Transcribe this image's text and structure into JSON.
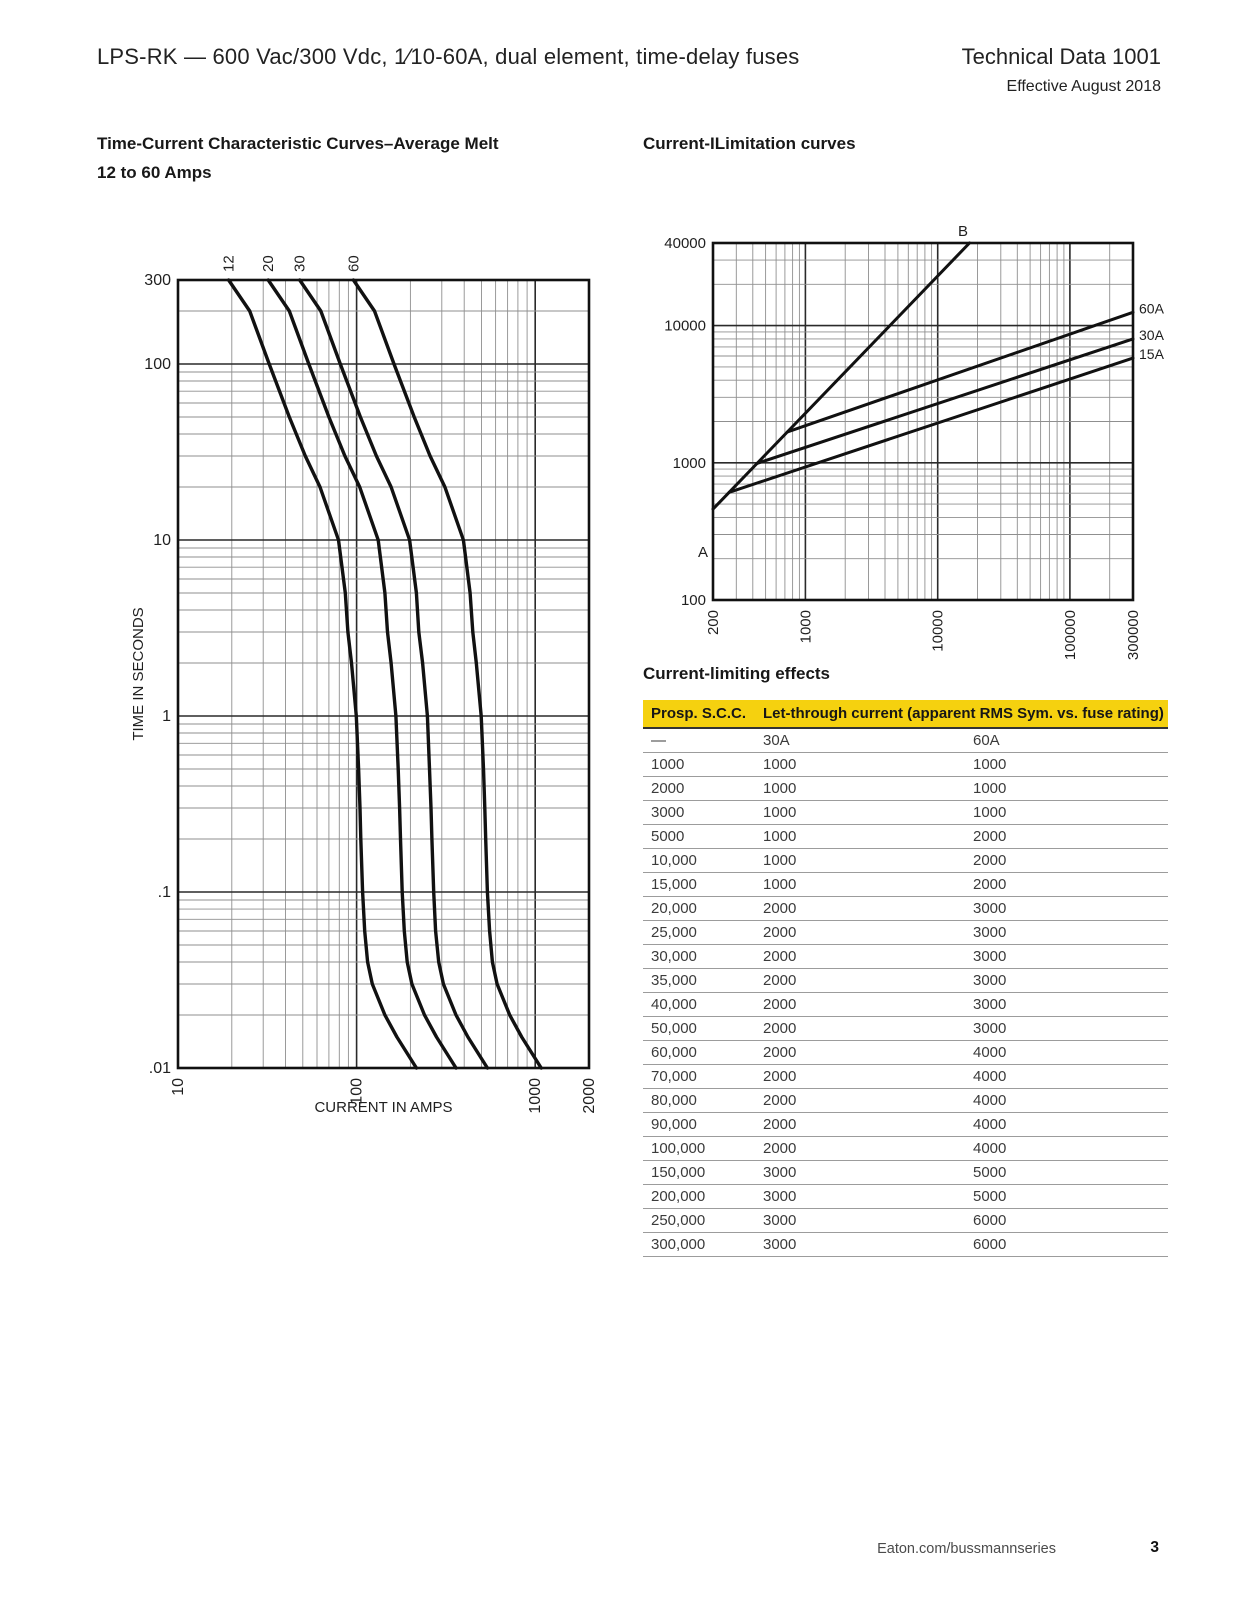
{
  "header": {
    "title": "LPS-RK — 600 Vac/300 Vdc, 1⁄10-60A, dual element, time-delay fuses",
    "doc_ref": "Technical Data 1001",
    "effective": "Effective August 2018"
  },
  "sections": {
    "tcc_title_line1": "Time-Current Characteristic Curves–Average Melt",
    "tcc_title_line2": "12 to 60 Amps",
    "limitation_title": "Current-ILimitation curves",
    "table_title": "Current-limiting effects"
  },
  "table": {
    "header_col1": "Prosp. S.C.C.",
    "header_col2": "Let-through current (apparent RMS Sym. vs. fuse rating)",
    "subheader": [
      "—",
      "30A",
      "60A"
    ],
    "rows": [
      [
        "1000",
        "1000",
        "1000"
      ],
      [
        "2000",
        "1000",
        "1000"
      ],
      [
        "3000",
        "1000",
        "1000"
      ],
      [
        "5000",
        "1000",
        "2000"
      ],
      [
        "10,000",
        "1000",
        "2000"
      ],
      [
        "15,000",
        "1000",
        "2000"
      ],
      [
        "20,000",
        "2000",
        "3000"
      ],
      [
        "25,000",
        "2000",
        "3000"
      ],
      [
        "30,000",
        "2000",
        "3000"
      ],
      [
        "35,000",
        "2000",
        "3000"
      ],
      [
        "40,000",
        "2000",
        "3000"
      ],
      [
        "50,000",
        "2000",
        "3000"
      ],
      [
        "60,000",
        "2000",
        "4000"
      ],
      [
        "70,000",
        "2000",
        "4000"
      ],
      [
        "80,000",
        "2000",
        "4000"
      ],
      [
        "90,000",
        "2000",
        "4000"
      ],
      [
        "100,000",
        "2000",
        "4000"
      ],
      [
        "150,000",
        "3000",
        "5000"
      ],
      [
        "200,000",
        "3000",
        "5000"
      ],
      [
        "250,000",
        "3000",
        "6000"
      ],
      [
        "300,000",
        "3000",
        "6000"
      ]
    ]
  },
  "footer": {
    "url": "Eaton.com/bussmannseries",
    "page_number": "3"
  },
  "colors": {
    "highlight_yellow": "#f5d10f",
    "curve_black": "#111111",
    "grid_minor": "#8f8f8f",
    "grid_major": "#2a2a2a"
  },
  "chart_data": [
    {
      "type": "line",
      "title": "Time-Current Characteristic Curves–Average Melt, 12 to 60 Amps",
      "xlabel": "CURRENT IN AMPS",
      "ylabel": "TIME IN SECONDS",
      "xscale": "log",
      "yscale": "log",
      "xlim": [
        10,
        2000
      ],
      "ylim": [
        0.01,
        300
      ],
      "grid": true,
      "x_ticks": [
        10,
        100,
        1000,
        2000
      ],
      "x_tick_labels": [
        "10",
        "100",
        "1000",
        "2000"
      ],
      "y_ticks": [
        300,
        100,
        10,
        1,
        0.1,
        0.01
      ],
      "y_tick_labels": [
        "300",
        "100",
        "10",
        "1",
        ".1",
        ".01"
      ],
      "series": [
        {
          "name": "12",
          "points": [
            [
              19.2,
              300
            ],
            [
              25.2,
              200
            ],
            [
              32.4,
              100
            ],
            [
              42,
              50
            ],
            [
              51.6,
              30
            ],
            [
              62.4,
              20
            ],
            [
              79.2,
              10
            ],
            [
              86.4,
              5
            ],
            [
              89.4,
              3
            ],
            [
              93.6,
              2
            ],
            [
              99.6,
              1
            ],
            [
              102.6,
              0.5
            ],
            [
              104.4,
              0.3
            ],
            [
              105.6,
              0.2
            ],
            [
              108,
              0.1
            ],
            [
              111,
              0.06
            ],
            [
              115.2,
              0.04
            ],
            [
              122.4,
              0.03
            ],
            [
              144,
              0.02
            ],
            [
              168,
              0.015
            ],
            [
              216,
              0.01
            ]
          ]
        },
        {
          "name": "20",
          "points": [
            [
              32,
              300
            ],
            [
              42,
              200
            ],
            [
              54,
              100
            ],
            [
              70,
              50
            ],
            [
              86,
              30
            ],
            [
              104,
              20
            ],
            [
              132,
              10
            ],
            [
              144,
              5
            ],
            [
              149,
              3
            ],
            [
              156,
              2
            ],
            [
              166,
              1
            ],
            [
              171,
              0.5
            ],
            [
              174,
              0.3
            ],
            [
              176,
              0.2
            ],
            [
              180,
              0.1
            ],
            [
              185,
              0.06
            ],
            [
              192,
              0.04
            ],
            [
              204,
              0.03
            ],
            [
              240,
              0.02
            ],
            [
              280,
              0.015
            ],
            [
              360,
              0.01
            ]
          ]
        },
        {
          "name": "30",
          "points": [
            [
              48,
              300
            ],
            [
              63,
              200
            ],
            [
              81,
              100
            ],
            [
              105,
              50
            ],
            [
              129,
              30
            ],
            [
              156,
              20
            ],
            [
              198,
              10
            ],
            [
              216,
              5
            ],
            [
              223,
              3
            ],
            [
              234,
              2
            ],
            [
              249,
              1
            ],
            [
              256,
              0.5
            ],
            [
              261,
              0.3
            ],
            [
              264,
              0.2
            ],
            [
              270,
              0.1
            ],
            [
              277,
              0.06
            ],
            [
              288,
              0.04
            ],
            [
              306,
              0.03
            ],
            [
              360,
              0.02
            ],
            [
              420,
              0.015
            ],
            [
              540,
              0.01
            ]
          ]
        },
        {
          "name": "60",
          "points": [
            [
              96,
              300
            ],
            [
              126,
              200
            ],
            [
              162,
              100
            ],
            [
              210,
              50
            ],
            [
              258,
              30
            ],
            [
              312,
              20
            ],
            [
              396,
              10
            ],
            [
              432,
              5
            ],
            [
              447,
              3
            ],
            [
              468,
              2
            ],
            [
              498,
              1
            ],
            [
              513,
              0.5
            ],
            [
              522,
              0.3
            ],
            [
              528,
              0.2
            ],
            [
              540,
              0.1
            ],
            [
              555,
              0.06
            ],
            [
              576,
              0.04
            ],
            [
              612,
              0.03
            ],
            [
              720,
              0.02
            ],
            [
              840,
              0.015
            ],
            [
              1080,
              0.01
            ]
          ]
        }
      ]
    },
    {
      "type": "line",
      "title": "Current-ILimitation curves",
      "xlabel": "",
      "ylabel": "",
      "xscale": "log",
      "yscale": "log",
      "xlim": [
        200,
        300000
      ],
      "ylim": [
        100,
        40000
      ],
      "grid": true,
      "x_ticks": [
        200,
        1000,
        10000,
        100000,
        300000
      ],
      "x_tick_labels": [
        "200",
        "1000",
        "10000",
        "100000",
        "300000"
      ],
      "y_ticks": [
        40000,
        10000,
        1000,
        100
      ],
      "y_tick_labels": [
        "40000",
        "10000",
        "1000",
        "100"
      ],
      "series": [
        {
          "name": "A-B",
          "label_right": false,
          "points": [
            [
              200,
              460
            ],
            [
              17400,
              40000
            ]
          ]
        },
        {
          "name": "60A",
          "label_right": true,
          "points": [
            [
              730,
              1680
            ],
            [
              300000,
              12500
            ]
          ]
        },
        {
          "name": "30A",
          "label_right": true,
          "points": [
            [
              430,
              990
            ],
            [
              300000,
              8000
            ]
          ]
        },
        {
          "name": "15A",
          "label_right": true,
          "points": [
            [
              265,
              610
            ],
            [
              300000,
              5800
            ]
          ]
        }
      ],
      "annotations": [
        {
          "text": "B"
        },
        {
          "text": "A"
        }
      ]
    }
  ]
}
